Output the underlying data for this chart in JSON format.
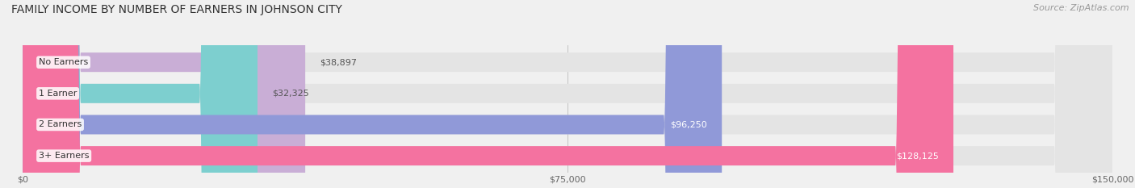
{
  "title": "FAMILY INCOME BY NUMBER OF EARNERS IN JOHNSON CITY",
  "source": "Source: ZipAtlas.com",
  "categories": [
    "No Earners",
    "1 Earner",
    "2 Earners",
    "3+ Earners"
  ],
  "values": [
    38897,
    32325,
    96250,
    128125
  ],
  "bar_colors": [
    "#c9aed6",
    "#7dcfcf",
    "#9099d8",
    "#f472a0"
  ],
  "label_colors": [
    "#555555",
    "#555555",
    "#ffffff",
    "#ffffff"
  ],
  "value_labels": [
    "$38,897",
    "$32,325",
    "$96,250",
    "$128,125"
  ],
  "xlim": [
    0,
    150000
  ],
  "xticks": [
    0,
    75000,
    150000
  ],
  "xtick_labels": [
    "$0",
    "$75,000",
    "$150,000"
  ],
  "background_color": "#f0f0f0",
  "bar_background_color": "#e4e4e4",
  "title_fontsize": 10,
  "source_fontsize": 8,
  "label_fontsize": 8,
  "value_fontsize": 8,
  "tick_fontsize": 8
}
